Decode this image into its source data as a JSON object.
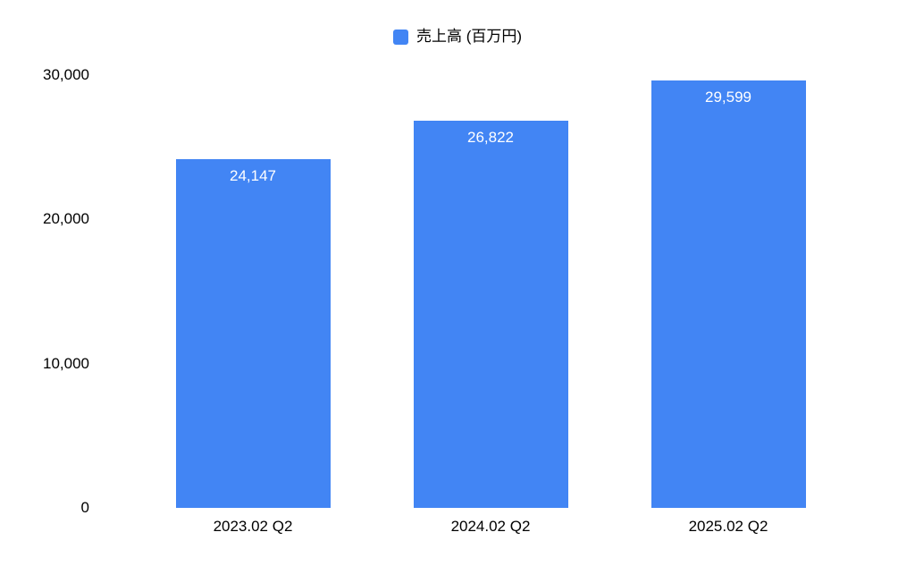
{
  "chart_data": {
    "type": "bar",
    "title": "",
    "legend": "売上高 (百万円)",
    "legend_position": "top",
    "categories": [
      "2023.02 Q2",
      "2024.02 Q2",
      "2025.02 Q2"
    ],
    "values": [
      24147,
      26822,
      29599
    ],
    "value_labels": [
      "24,147",
      "26,822",
      "29,599"
    ],
    "ylim": [
      0,
      30000
    ],
    "yticks": [
      {
        "value": 0,
        "label": "0"
      },
      {
        "value": 10000,
        "label": "10,000"
      },
      {
        "value": 20000,
        "label": "20,000"
      },
      {
        "value": 30000,
        "label": "30,000"
      }
    ],
    "grid": false,
    "colors": {
      "bar": "#4285F4",
      "value_label": "#FFFFFF",
      "axis_text": "#000000"
    }
  }
}
